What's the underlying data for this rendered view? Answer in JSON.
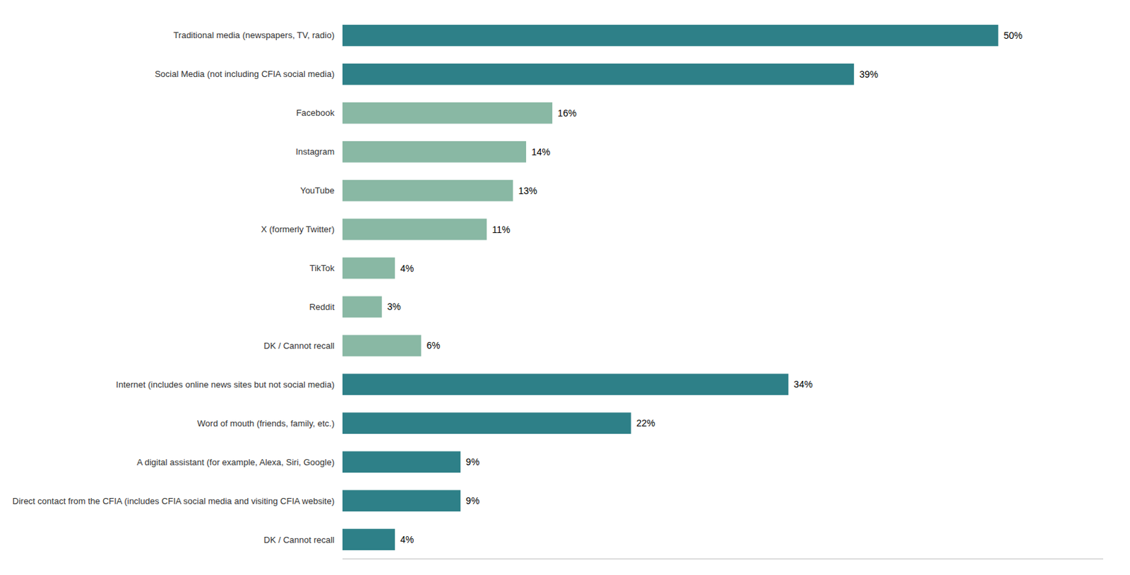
{
  "chart_data": {
    "type": "bar",
    "orientation": "horizontal",
    "categories": [
      "Traditional media (newspapers, TV, radio)",
      "Social Media (not including CFIA social media)",
      "Facebook",
      "Instagram",
      "YouTube",
      "X (formerly Twitter)",
      "TikTok",
      "Reddit",
      "DK / Cannot recall",
      "Internet (includes online news sites but not social media)",
      "Word of mouth (friends, family, etc.)",
      "A digital assistant (for example, Alexa, Siri, Google)",
      "Direct contact from the CFIA (includes CFIA social media and visiting CFIA website)",
      "DK / Cannot recall "
    ],
    "values": [
      50,
      39,
      16,
      14,
      13,
      11,
      4,
      3,
      6,
      34,
      22,
      9,
      9,
      4
    ],
    "value_labels": [
      "50%",
      "39%",
      "16%",
      "14%",
      "13%",
      "11%",
      "4%",
      "3%",
      "6%",
      "34%",
      "22%",
      "9%",
      "9%",
      "4%"
    ],
    "colors": [
      "#2e8088",
      "#2e8088",
      "#89b8a4",
      "#89b8a4",
      "#89b8a4",
      "#89b8a4",
      "#89b8a4",
      "#89b8a4",
      "#89b8a4",
      "#2e8088",
      "#2e8088",
      "#2e8088",
      "#2e8088",
      "#2e8088"
    ],
    "xlim": [
      0,
      58
    ],
    "data_labels": true,
    "tick_labels": "y",
    "grid": false
  }
}
